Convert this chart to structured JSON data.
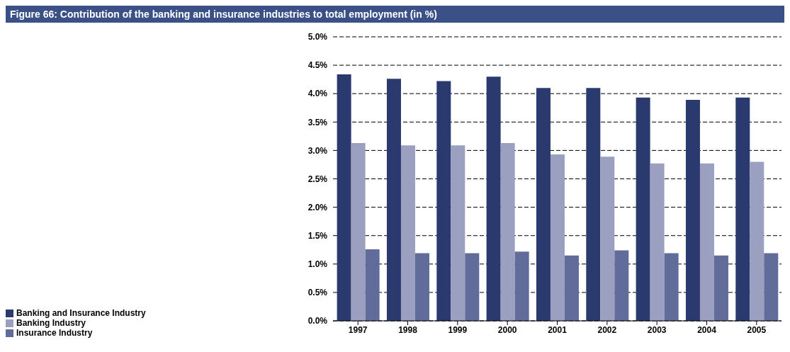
{
  "chart_data": {
    "type": "bar",
    "title": "Figure 66: Contribution of the banking and insurance industries to total employment (in %)",
    "categories": [
      "1997",
      "1998",
      "1999",
      "2000",
      "2001",
      "2002",
      "2003",
      "2004",
      "2005"
    ],
    "series": [
      {
        "name": "Banking and Insurance Industry",
        "color": "#2b3a6e",
        "values": [
          4.34,
          4.26,
          4.22,
          4.3,
          4.1,
          4.1,
          3.93,
          3.89,
          3.93
        ]
      },
      {
        "name": "Banking Industry",
        "color": "#9ca0c0",
        "values": [
          3.13,
          3.09,
          3.09,
          3.13,
          2.93,
          2.89,
          2.77,
          2.77,
          2.8
        ]
      },
      {
        "name": "Insurance Industry",
        "color": "#616c9b",
        "values": [
          1.26,
          1.19,
          1.19,
          1.22,
          1.15,
          1.24,
          1.19,
          1.15,
          1.19
        ]
      }
    ],
    "ylim": [
      0,
      5
    ],
    "yticks": [
      {
        "value": 0,
        "label": "0.0%"
      },
      {
        "value": 0.5,
        "label": "0.5%"
      },
      {
        "value": 1,
        "label": "1.0%"
      },
      {
        "value": 1.5,
        "label": "1.5%"
      },
      {
        "value": 2,
        "label": "2.0%"
      },
      {
        "value": 2.5,
        "label": "2.5%"
      },
      {
        "value": 3,
        "label": "3.0%"
      },
      {
        "value": 3.5,
        "label": "3.5%"
      },
      {
        "value": 4,
        "label": "4.0%"
      },
      {
        "value": 4.5,
        "label": "4.5%"
      },
      {
        "value": 5,
        "label": "5.0%"
      }
    ],
    "grid": "y",
    "legend": "bottom left"
  }
}
